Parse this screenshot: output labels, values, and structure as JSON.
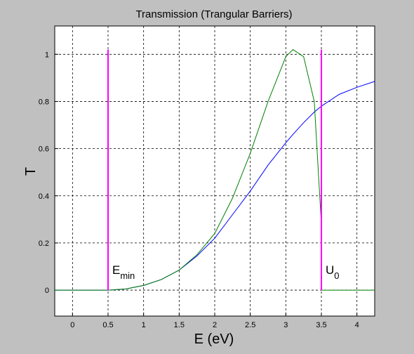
{
  "chart_data": {
    "type": "line",
    "title": "Transmission (Trangular  Barriers)",
    "x_label": "E (eV)",
    "y_label": "T",
    "x": [
      -0.25,
      0,
      0.25,
      0.5,
      0.75,
      1,
      1.25,
      1.5,
      1.75,
      2,
      2.25,
      2.5,
      2.75,
      3,
      3.1,
      3.25,
      3.4,
      3.5,
      3.5,
      3.75,
      4,
      4.25
    ],
    "series": [
      {
        "color": "#0000ff",
        "values": [
          0,
          0,
          0,
          0,
          0.005,
          0.02,
          0.045,
          0.085,
          0.145,
          0.22,
          0.32,
          0.42,
          0.53,
          0.625,
          0.66,
          0.71,
          0.755,
          0.78,
          0.78,
          0.83,
          0.86,
          0.885
        ]
      },
      {
        "color": "#008000",
        "values": [
          0,
          0,
          0,
          0,
          0.005,
          0.02,
          0.045,
          0.085,
          0.15,
          0.24,
          0.39,
          0.58,
          0.8,
          0.99,
          1.02,
          0.99,
          0.8,
          0.28,
          0,
          0,
          0,
          0
        ]
      }
    ],
    "vlines": [
      {
        "x": 0.5,
        "y_range": [
          0,
          1.02
        ],
        "color": "#ff00ff",
        "label": "E",
        "subscript": "min"
      },
      {
        "x": 3.5,
        "y_range": [
          0,
          1.02
        ],
        "color": "#ff00ff",
        "label": "U",
        "subscript": "0"
      }
    ],
    "xlim": [
      -0.25,
      4.25
    ],
    "ylim": [
      -0.11,
      1.12
    ],
    "xticks": [
      0,
      0.5,
      1,
      1.5,
      2,
      2.5,
      3,
      3.5,
      4
    ],
    "yticks": [
      0,
      0.2,
      0.4,
      0.6,
      0.8,
      1
    ],
    "grid": true
  }
}
